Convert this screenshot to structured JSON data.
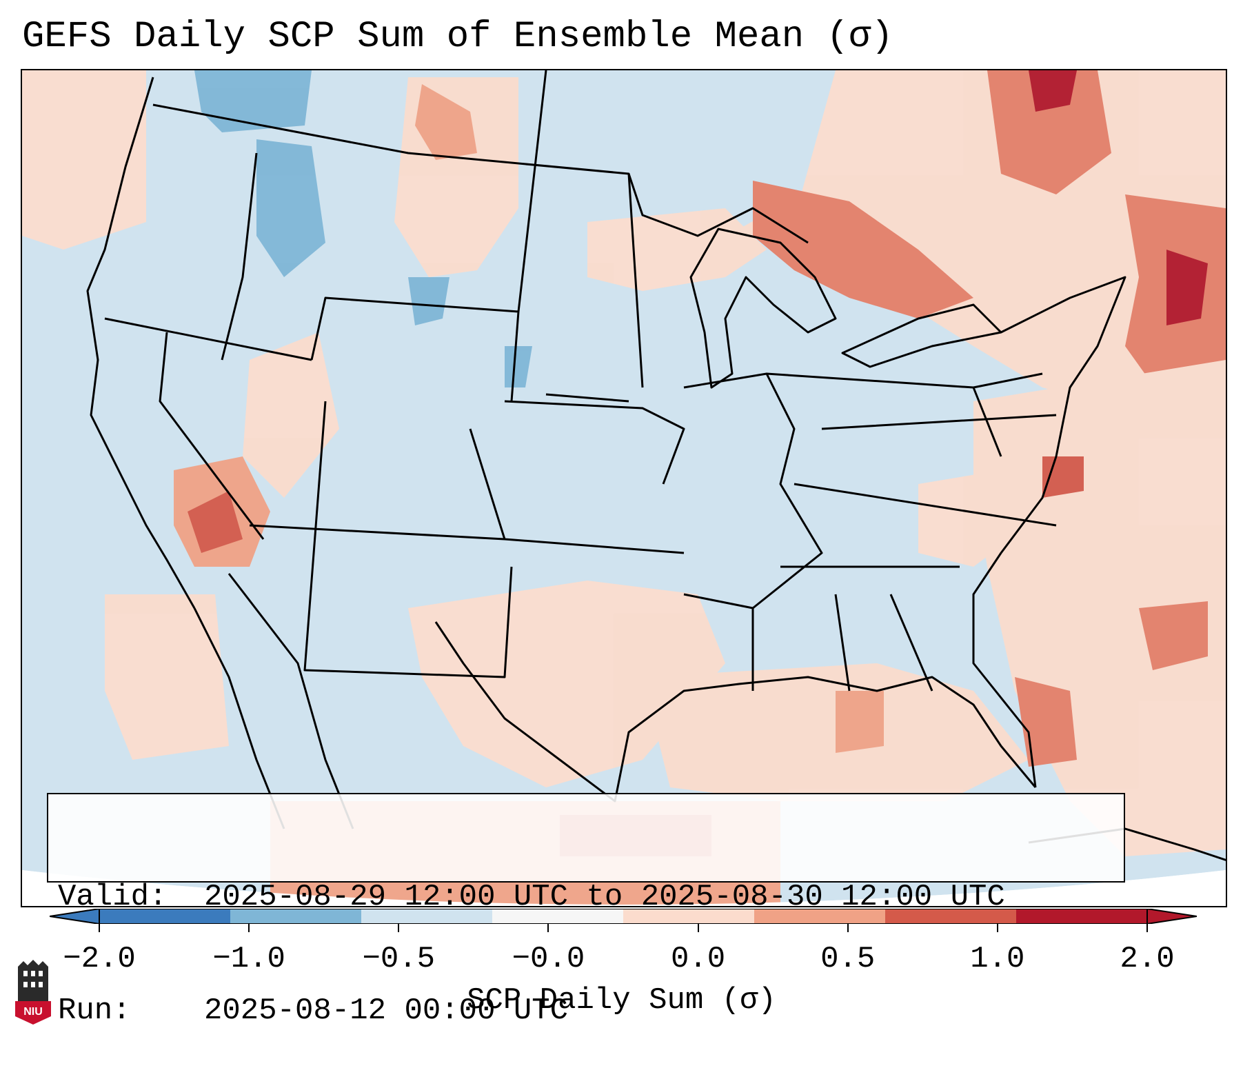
{
  "title": "GEFS Daily SCP Sum of Ensemble Mean (σ)",
  "map": {
    "region": "Contiguous United States",
    "background_color": "#d0e3ef",
    "panels": [
      {
        "name": "Northeast / Great Lakes",
        "level": "0.5 to 2.0"
      },
      {
        "name": "Desert Southwest",
        "level": "0.5 to 2.0"
      },
      {
        "name": "Gulf of Mexico / Southeast Coast",
        "level": "0.0 to 1.0"
      },
      {
        "name": "Northern Rockies",
        "level": "-1.0 to -0.5"
      }
    ]
  },
  "info": {
    "valid_key": "Valid:",
    "valid_value": "2025-08-29 12:00 UTC to 2025-08-30 12:00 UTC",
    "run_key": "Run:",
    "run_value": "2025-08-12 00:00 UTC"
  },
  "colorbar": {
    "label": "SCP Daily Sum (σ)",
    "ticks": [
      "−2.0",
      "−1.0",
      "−0.5",
      "−0.0",
      "0.0",
      "0.5",
      "1.0",
      "2.0"
    ],
    "colors": [
      "#3b7bbd",
      "#7fb6d6",
      "#d0e3ef",
      "#f6f6f6",
      "#fbdccd",
      "#f0a286",
      "#d45a4a",
      "#b2182b"
    ]
  },
  "logo": {
    "text": "NIU",
    "colors": {
      "tower": "#2a2a2a",
      "shield": "#c8102e"
    }
  }
}
